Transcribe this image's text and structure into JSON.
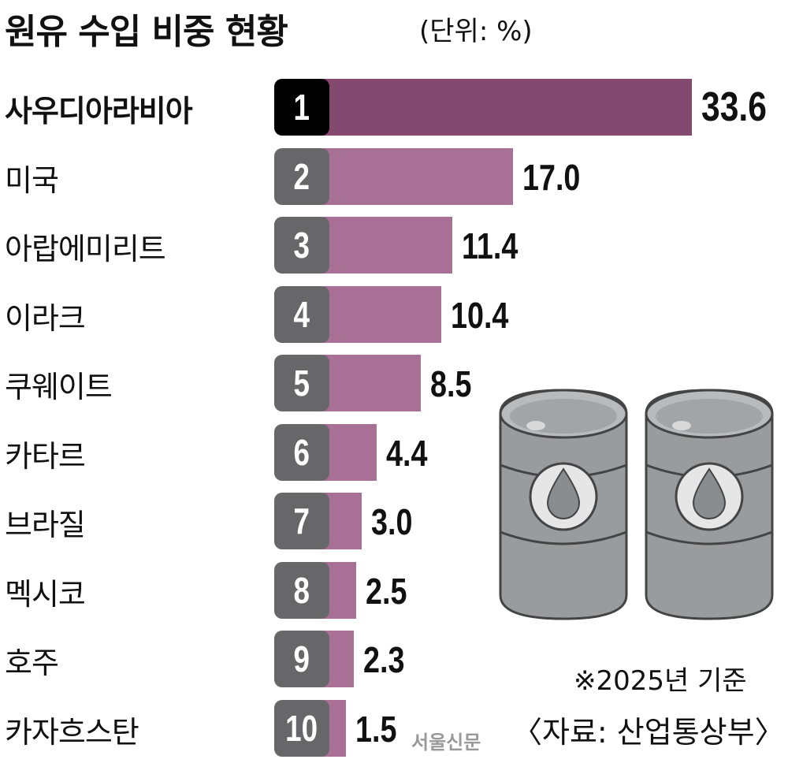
{
  "title": "원유 수입 비중 현황",
  "unit": "(단위: %)",
  "note": "※2025년 기준",
  "source": "〈자료: 산업통상부〉",
  "watermark": "서울신문",
  "colors": {
    "top_bar": "#84496e",
    "bar": "#a87094",
    "top_rank": "#000000",
    "rank": "#676769"
  },
  "chart_data": {
    "type": "bar",
    "orientation": "horizontal",
    "title": "원유 수입 비중 현황",
    "unit": "%",
    "categories": [
      "사우디아라비아",
      "미국",
      "아랍에미리트",
      "이라크",
      "쿠웨이트",
      "카타르",
      "브라질",
      "멕시코",
      "호주",
      "카자흐스탄"
    ],
    "ranks": [
      "1",
      "2",
      "3",
      "4",
      "5",
      "6",
      "7",
      "8",
      "9",
      "10"
    ],
    "values": [
      33.6,
      17.0,
      11.4,
      10.4,
      8.5,
      4.4,
      3.0,
      2.5,
      2.3,
      1.5
    ],
    "value_labels": [
      "33.6",
      "17.0",
      "11.4",
      "10.4",
      "8.5",
      "4.4",
      "3.0",
      "2.5",
      "2.3",
      "1.5"
    ],
    "xlim": [
      0,
      33.6
    ]
  }
}
